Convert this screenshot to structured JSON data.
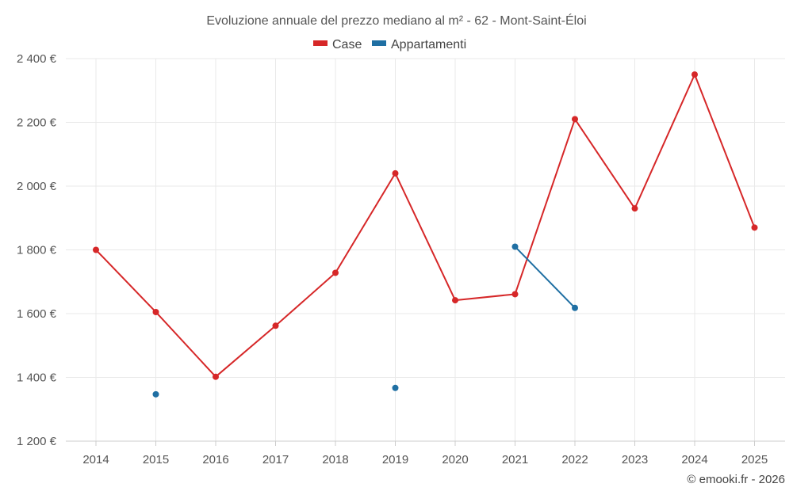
{
  "chart_data": {
    "type": "line",
    "title": "Evoluzione annuale del prezzo mediano al m² - 62 - Mont-Saint-Éloi",
    "categories": [
      "2014",
      "2015",
      "2016",
      "2017",
      "2018",
      "2019",
      "2020",
      "2021",
      "2022",
      "2023",
      "2024",
      "2025"
    ],
    "ylim": [
      1200,
      2400
    ],
    "yticks": [
      1200,
      1400,
      1600,
      1800,
      2000,
      2200,
      2400
    ],
    "ytick_labels": [
      "1 200 €",
      "1 400 €",
      "1 600 €",
      "1 800 €",
      "2 000 €",
      "2 200 €",
      "2 400 €"
    ],
    "grid": true,
    "legend_position": "top-center",
    "series": [
      {
        "name": "Case",
        "color": "#d62728",
        "values": [
          1800,
          1605,
          1402,
          1562,
          1728,
          2040,
          1642,
          1661,
          2210,
          1930,
          2350,
          1870
        ]
      },
      {
        "name": "Appartamenti",
        "color": "#1f6fa3",
        "values": [
          null,
          1347,
          null,
          null,
          null,
          1367,
          null,
          1810,
          1618,
          null,
          null,
          null
        ]
      }
    ],
    "credit": "© emooki.fr - 2026"
  }
}
